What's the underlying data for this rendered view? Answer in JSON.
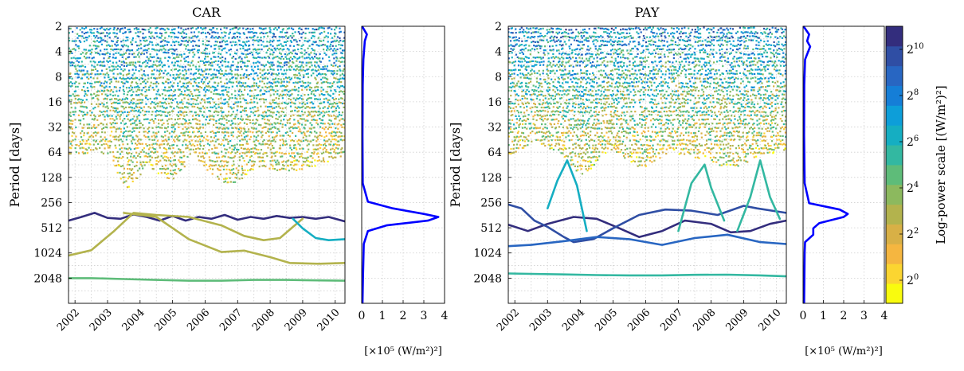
{
  "colors": {
    "colormap": [
      "#f9fb0e",
      "#fbd531",
      "#f5b640",
      "#d8b046",
      "#b3b34d",
      "#8cb95e",
      "#5ebc79",
      "#33b8a1",
      "#15aec2",
      "#0d9ed9",
      "#157ed7",
      "#2866c2",
      "#2f4ea4",
      "#332d7d"
    ],
    "spectrum_line": "#0000ff"
  },
  "chart_data": [
    {
      "type": "scatter",
      "title": "CAR",
      "ylabel": "Period [days]",
      "x": [
        2002,
        2003,
        2004,
        2005,
        2006,
        2007,
        2008,
        2009,
        2010
      ],
      "xlim": [
        2001.8,
        2010.3
      ],
      "y_ticks": [
        2,
        4,
        8,
        16,
        32,
        64,
        128,
        256,
        512,
        1024,
        2048
      ],
      "ylim": [
        2,
        4096
      ],
      "y_scale": "log2",
      "grid": true,
      "series": [
        {
          "log_power": 10.5,
          "x": [
            2001.8,
            2002.2,
            2002.6,
            2003.0,
            2003.4,
            2003.8,
            2004.2,
            2004.6,
            2005.0,
            2005.4,
            2005.8,
            2006.2,
            2006.6,
            2007.0,
            2007.4,
            2007.8,
            2008.2,
            2008.6,
            2009.0,
            2009.4,
            2009.8,
            2010.3
          ],
          "period": [
            420,
            380,
            340,
            390,
            400,
            355,
            380,
            420,
            370,
            420,
            380,
            400,
            360,
            410,
            380,
            400,
            370,
            390,
            380,
            400,
            380,
            430
          ]
        },
        {
          "log_power": 3.0,
          "x": [
            2001.8,
            2002.5,
            2003.2,
            2003.8,
            2004.5,
            2005.5,
            2006.5,
            2007.2,
            2007.8,
            2008.3,
            2008.7,
            2009.0
          ],
          "period": [
            1100,
            950,
            560,
            340,
            360,
            380,
            480,
            640,
            720,
            680,
            500,
            400
          ]
        },
        {
          "log_power": 2.6,
          "x": [
            2003.5,
            2004.5,
            2005.5,
            2006.5,
            2007.2,
            2008.0,
            2008.6,
            2009.5,
            2010.3
          ],
          "period": [
            340,
            380,
            700,
            1000,
            960,
            1150,
            1350,
            1380,
            1350
          ]
        },
        {
          "log_power": 6.3,
          "x": [
            2008.7,
            2009.0,
            2009.4,
            2009.8,
            2010.3
          ],
          "period": [
            400,
            520,
            680,
            720,
            700
          ]
        },
        {
          "log_power": 4.8,
          "x": [
            2001.8,
            2002.5,
            2003.5,
            2004.5,
            2005.5,
            2006.5,
            2007.5,
            2008.5,
            2009.5,
            2010.3
          ],
          "period": [
            2050,
            2050,
            2100,
            2150,
            2200,
            2200,
            2150,
            2150,
            2180,
            2200
          ]
        }
      ],
      "ridges": {
        "x": [
          2001.8,
          2002.6,
          2003.1,
          2003.6,
          2004.2,
          2005.0,
          2005.6,
          2006.7,
          2007.6,
          2008.6,
          2009.8,
          2010.3
        ],
        "period_min": [
          75,
          60,
          70,
          170,
          90,
          140,
          60,
          160,
          95,
          110,
          80,
          70
        ],
        "period_max": [
          2,
          2,
          2,
          2,
          2,
          2,
          2,
          2,
          2,
          2,
          2,
          2
        ]
      }
    },
    {
      "type": "line",
      "xlabel": "[×10⁵ (W/m²)²]",
      "x_ticks": [
        0,
        1,
        2,
        3,
        4
      ],
      "xlim": [
        0,
        4
      ],
      "ylim": [
        2,
        4096
      ],
      "y_scale": "log2",
      "grid": true,
      "values": [
        {
          "period": 2,
          "power": 0.02
        },
        {
          "period": 2.5,
          "power": 0.25
        },
        {
          "period": 3,
          "power": 0.15
        },
        {
          "period": 5,
          "power": 0.08
        },
        {
          "period": 10,
          "power": 0.05
        },
        {
          "period": 40,
          "power": 0.04
        },
        {
          "period": 150,
          "power": 0.05
        },
        {
          "period": 250,
          "power": 0.3
        },
        {
          "period": 300,
          "power": 1.5
        },
        {
          "period": 350,
          "power": 3.0
        },
        {
          "period": 380,
          "power": 3.7
        },
        {
          "period": 420,
          "power": 3.2
        },
        {
          "period": 480,
          "power": 1.2
        },
        {
          "period": 560,
          "power": 0.3
        },
        {
          "period": 800,
          "power": 0.1
        },
        {
          "period": 2000,
          "power": 0.06
        },
        {
          "period": 4096,
          "power": 0.04
        }
      ]
    },
    {
      "type": "scatter",
      "title": "PAY",
      "ylabel": "Period [days]",
      "x": [
        2002,
        2003,
        2004,
        2005,
        2006,
        2007,
        2008,
        2009,
        2010
      ],
      "xlim": [
        2001.8,
        2010.3
      ],
      "y_ticks": [
        2,
        4,
        8,
        16,
        32,
        64,
        128,
        256,
        512,
        1024,
        2048
      ],
      "ylim": [
        2,
        4096
      ],
      "y_scale": "log2",
      "grid": true,
      "series": [
        {
          "log_power": 10.3,
          "x": [
            2001.8,
            2002.4,
            2003.0,
            2003.8,
            2004.5,
            2005.2,
            2005.8,
            2006.5,
            2007.2,
            2008.0,
            2008.6,
            2009.2,
            2009.8,
            2010.3
          ],
          "period": [
            470,
            560,
            460,
            380,
            400,
            520,
            660,
            560,
            420,
            460,
            580,
            560,
            460,
            420
          ]
        },
        {
          "log_power": 9.3,
          "x": [
            2001.8,
            2002.2,
            2002.6,
            2003.0,
            2003.5,
            2003.8,
            2004.4,
            2005.0,
            2005.8,
            2006.6,
            2007.4,
            2008.2,
            2009.0,
            2009.4,
            2010.3
          ],
          "period": [
            270,
            300,
            420,
            500,
            660,
            760,
            700,
            520,
            360,
            310,
            320,
            360,
            280,
            300,
            340
          ]
        },
        {
          "log_power": 8.7,
          "x": [
            2001.8,
            2002.5,
            2003.5,
            2004.5,
            2005.5,
            2006.5,
            2007.5,
            2008.5,
            2009.5,
            2010.3
          ],
          "period": [
            850,
            820,
            740,
            660,
            700,
            820,
            680,
            620,
            760,
            800
          ]
        },
        {
          "log_power": 6.6,
          "x": [
            2003.0,
            2003.3,
            2003.6,
            2003.9,
            2004.2
          ],
          "period": [
            300,
            140,
            80,
            160,
            560
          ]
        },
        {
          "log_power": 5.2,
          "x": [
            2007.0,
            2007.4,
            2007.8,
            2008.0,
            2008.4
          ],
          "period": [
            560,
            150,
            90,
            170,
            420
          ]
        },
        {
          "log_power": 5.0,
          "x": [
            2008.8,
            2009.2,
            2009.5,
            2009.8,
            2010.1
          ],
          "period": [
            560,
            220,
            80,
            220,
            400
          ]
        },
        {
          "log_power": 5.4,
          "x": [
            2001.8,
            2002.5,
            2003.5,
            2004.5,
            2005.5,
            2006.5,
            2007.5,
            2008.5,
            2009.5,
            2010.3
          ],
          "period": [
            1800,
            1820,
            1850,
            1880,
            1900,
            1900,
            1870,
            1860,
            1900,
            1950
          ]
        }
      ],
      "ridges": {
        "x": [
          2001.8,
          2002.6,
          2003.4,
          2004.1,
          2004.9,
          2005.9,
          2006.8,
          2007.7,
          2008.5,
          2009.5,
          2010.3
        ],
        "period_min": [
          70,
          48,
          65,
          120,
          55,
          95,
          60,
          75,
          100,
          70,
          60
        ],
        "period_max": [
          2,
          2,
          2,
          2,
          2,
          2,
          2,
          2,
          2,
          2,
          2
        ]
      }
    },
    {
      "type": "line",
      "xlabel": "[×10⁵ (W/m²)²]",
      "x_ticks": [
        0,
        1,
        2,
        3,
        4
      ],
      "xlim": [
        0,
        4
      ],
      "ylim": [
        2,
        4096
      ],
      "y_scale": "log2",
      "grid": true,
      "values": [
        {
          "period": 2,
          "power": 0.02
        },
        {
          "period": 2.5,
          "power": 0.3
        },
        {
          "period": 3,
          "power": 0.2
        },
        {
          "period": 3.5,
          "power": 0.35
        },
        {
          "period": 5,
          "power": 0.1
        },
        {
          "period": 10,
          "power": 0.06
        },
        {
          "period": 40,
          "power": 0.05
        },
        {
          "period": 150,
          "power": 0.08
        },
        {
          "period": 260,
          "power": 0.3
        },
        {
          "period": 310,
          "power": 1.8
        },
        {
          "period": 350,
          "power": 2.2
        },
        {
          "period": 380,
          "power": 2.0
        },
        {
          "period": 450,
          "power": 0.8
        },
        {
          "period": 520,
          "power": 0.5
        },
        {
          "period": 620,
          "power": 0.5
        },
        {
          "period": 760,
          "power": 0.1
        },
        {
          "period": 1000,
          "power": 0.08
        },
        {
          "period": 4096,
          "power": 0.05
        }
      ]
    },
    {
      "type": "heatmap",
      "ylabel": "Log-power scale [(W/m²)²]",
      "exponent_ticks": [
        0,
        2,
        4,
        6,
        8,
        10
      ],
      "range": [
        -1,
        11
      ]
    }
  ]
}
